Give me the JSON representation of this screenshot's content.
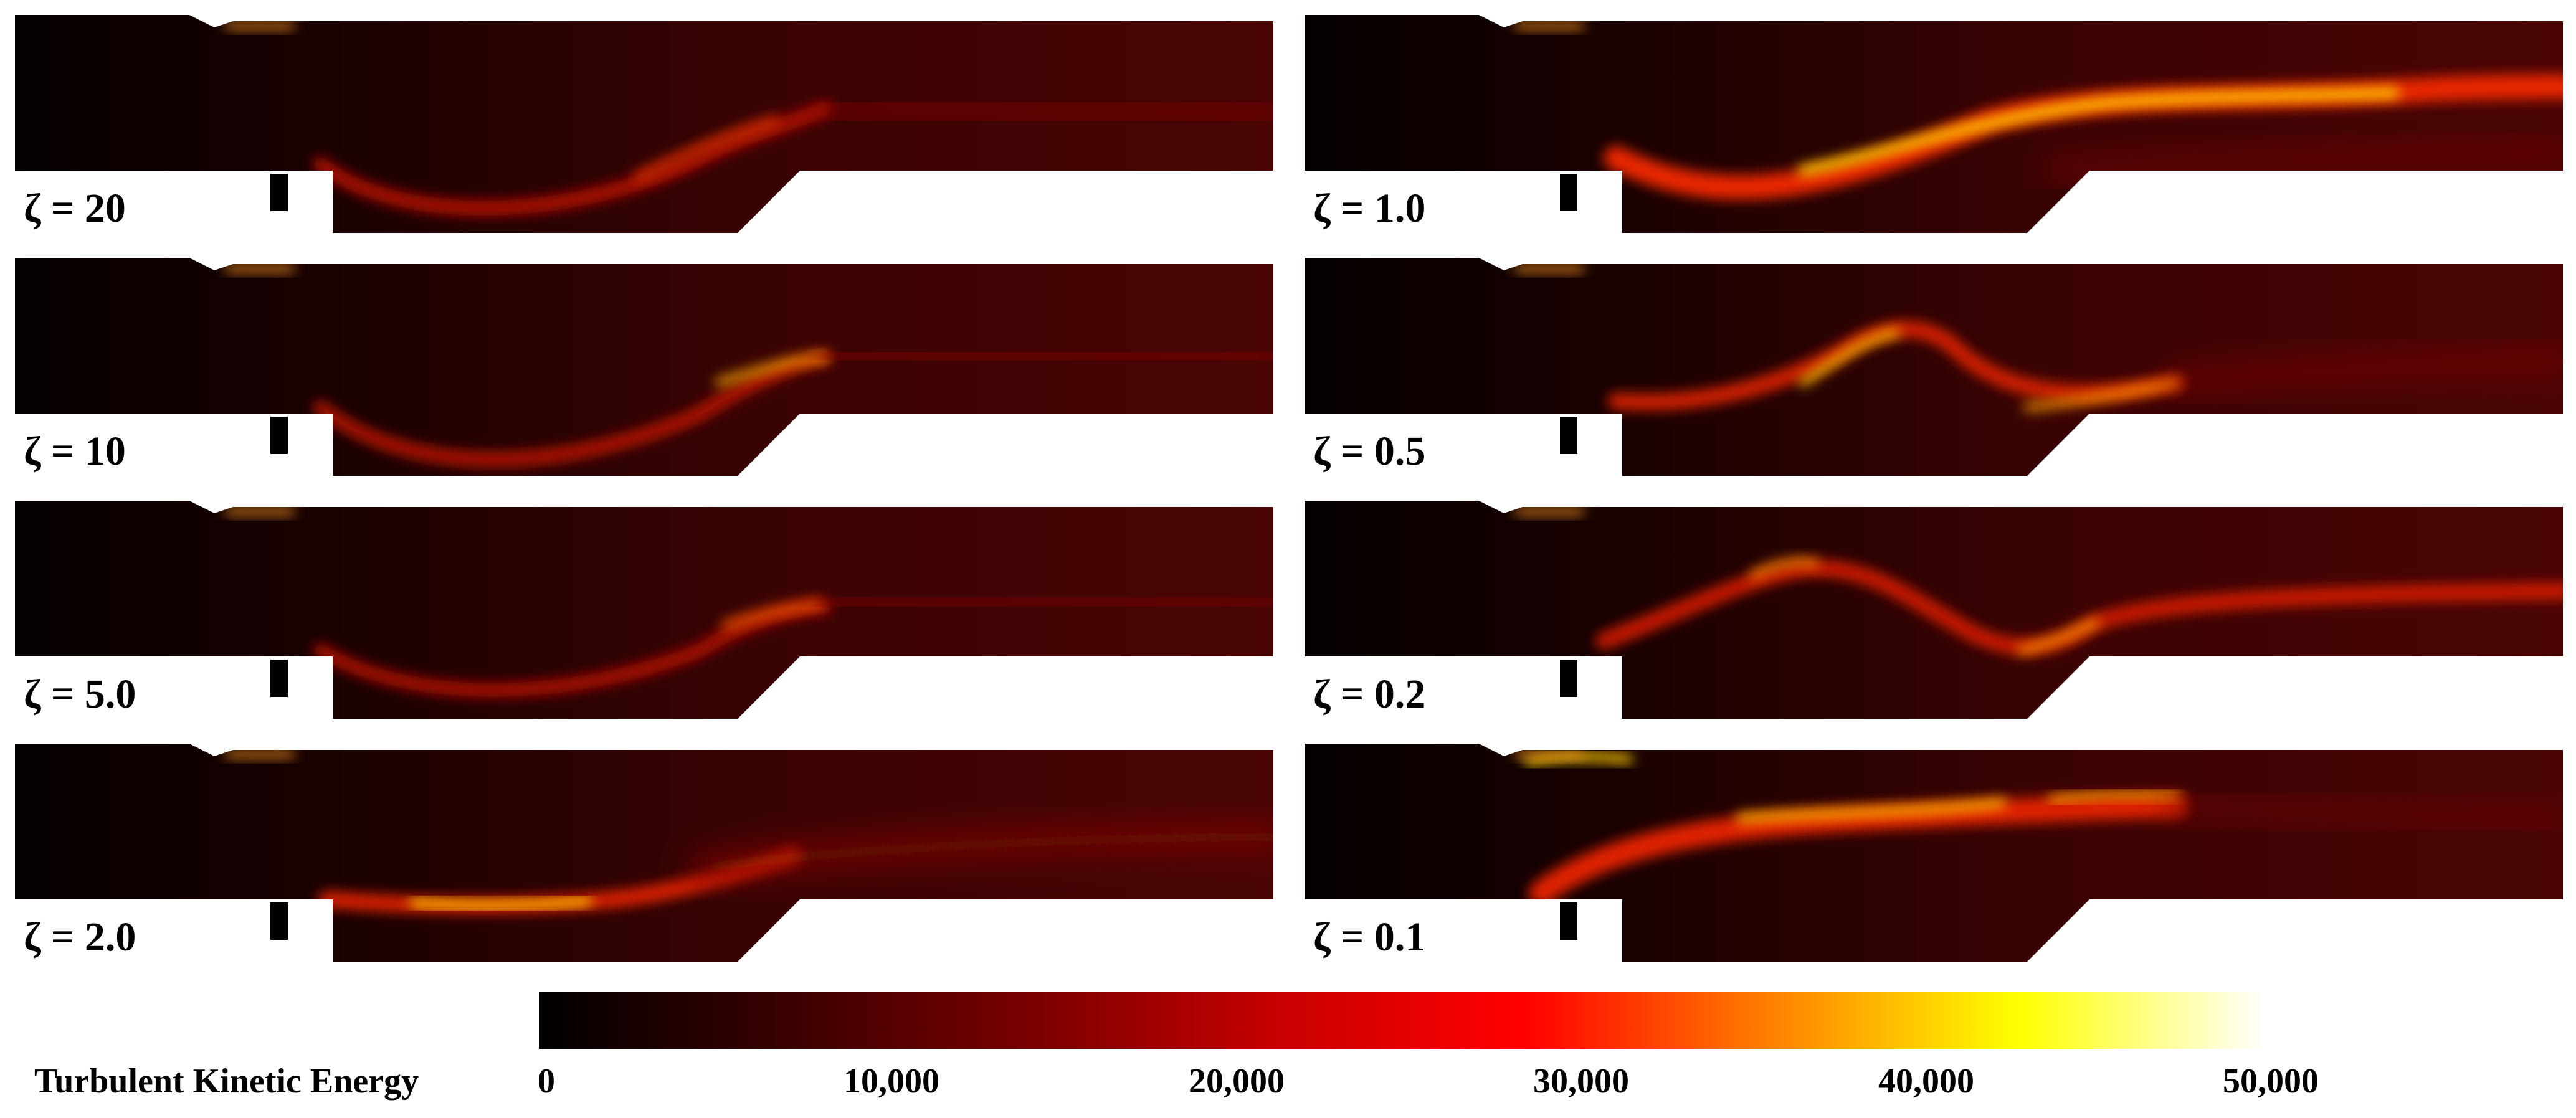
{
  "panels": [
    {
      "label": "ζ = 20"
    },
    {
      "label": "ζ = 10"
    },
    {
      "label": "ζ = 5.0"
    },
    {
      "label": "ζ = 2.0"
    },
    {
      "label": "ζ = 1.0"
    },
    {
      "label": "ζ = 0.5"
    },
    {
      "label": "ζ = 0.2"
    },
    {
      "label": "ζ = 0.1"
    }
  ],
  "colorbar": {
    "title": "Turbulent Kinetic Energy",
    "min": 0,
    "max": 50000,
    "ticks": [
      "0",
      "10,000",
      "20,000",
      "30,000",
      "40,000",
      "50,000"
    ],
    "colors": [
      "#000000",
      "#3a0000",
      "#7a0000",
      "#c80000",
      "#ff0000",
      "#ff8000",
      "#ffff00",
      "#ffffff"
    ]
  }
}
